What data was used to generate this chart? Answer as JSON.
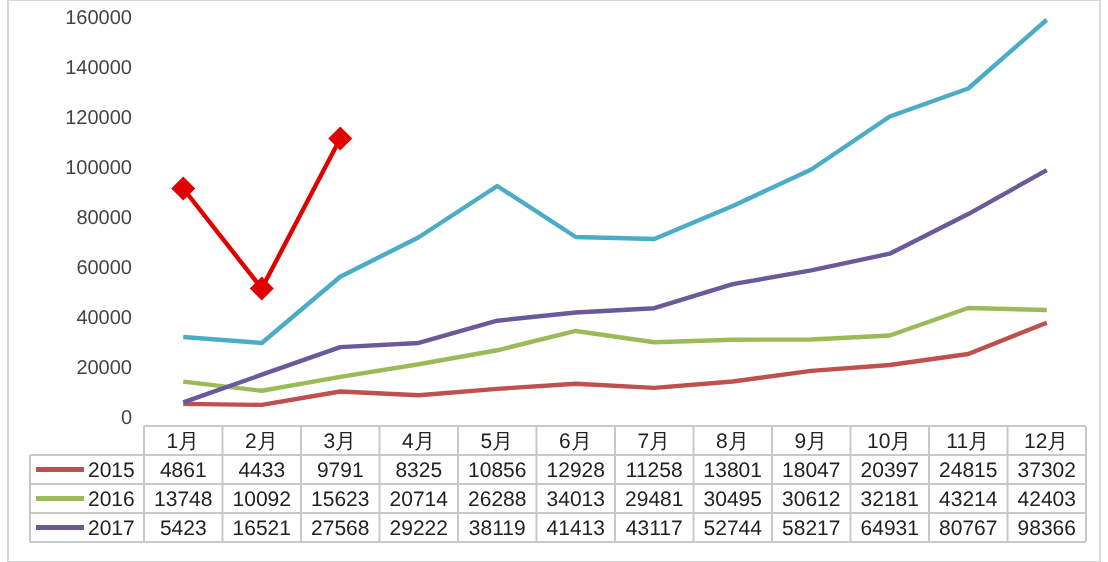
{
  "chart_data": {
    "type": "line",
    "categories": [
      "1月",
      "2月",
      "3月",
      "4月",
      "5月",
      "6月",
      "7月",
      "8月",
      "9月",
      "10月",
      "11月",
      "12月"
    ],
    "ylim": [
      0,
      160000
    ],
    "yticks": [
      0,
      20000,
      40000,
      60000,
      80000,
      100000,
      120000,
      140000,
      160000
    ],
    "grid": false,
    "legend": "bottom",
    "marker": "none",
    "line_style": "solid",
    "series": [
      {
        "name": "2015",
        "color": "#c0504d",
        "values": [
          4861,
          4433,
          9791,
          8325,
          10856,
          12928,
          11258,
          13801,
          18047,
          20397,
          24815,
          37302
        ],
        "value_labels": [
          "4861",
          "4433",
          "9791",
          "8325",
          "10856",
          "12928",
          "11258",
          "13801",
          "18047",
          "20397",
          "24815",
          "37302"
        ]
      },
      {
        "name": "2016",
        "color": "#9bbb59",
        "values": [
          13748,
          10092,
          15623,
          20714,
          26288,
          34013,
          29481,
          30495,
          30612,
          32181,
          43214,
          42403
        ],
        "value_labels": [
          "13748",
          "10092",
          "15623",
          "20714",
          "26288",
          "34013",
          "29481",
          "30495",
          "30612",
          "32181",
          "43214",
          "42403"
        ]
      },
      {
        "name": "2017",
        "color": "#6a5a9a",
        "values": [
          5423,
          16521,
          27568,
          29222,
          38119,
          41413,
          43117,
          52744,
          58217,
          64931,
          80767,
          98366
        ],
        "value_labels": [
          "5423",
          "16521",
          "27568",
          "29222",
          "38119",
          "41413",
          "43117",
          "52744",
          "58217",
          "64931",
          "80767",
          "98366"
        ]
      },
      {
        "color": "#4bacc6",
        "values": [
          31600,
          29200,
          55700,
          71500,
          92000,
          71600,
          70800,
          84000,
          98600,
          119800,
          131000,
          158500
        ]
      },
      {
        "color": "#e00000",
        "marker": "diamond",
        "values": [
          91000,
          51000,
          111000,
          null,
          null,
          null,
          null,
          null,
          null,
          null,
          null,
          null
        ]
      }
    ]
  }
}
